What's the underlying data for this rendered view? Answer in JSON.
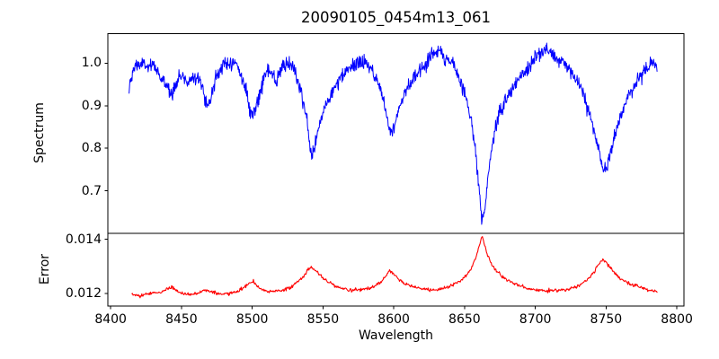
{
  "chart_data": {
    "type": "line",
    "title": "20090105_0454m13_061",
    "xlabel": "Wavelength",
    "grid": false,
    "legend": "none",
    "background": "#ffffff",
    "axis_color": "#000000",
    "xlim": [
      8398,
      8805
    ],
    "xticks": [
      8400,
      8450,
      8500,
      8550,
      8600,
      8650,
      8700,
      8750,
      8800
    ],
    "xtick_labels": [
      "8400",
      "8450",
      "8500",
      "8550",
      "8600",
      "8650",
      "8700",
      "8750",
      "8800"
    ],
    "panels": [
      {
        "name": "spectrum",
        "ylabel": "Spectrum",
        "ylim": [
          0.6,
          1.0695
        ],
        "yticks": [
          1.0,
          0.9,
          0.8,
          0.7
        ],
        "ytick_labels": [
          "1.0",
          "0.9",
          "0.8",
          "0.7"
        ],
        "series": [
          {
            "name": "spectrum",
            "color": "#0000ff",
            "linewidth": 1.0,
            "x_range": [
              8413,
              8786
            ],
            "n_points": 1250,
            "noise_sd": 0.0085,
            "seed": 1234,
            "anchors": [
              [
                8413,
                0.935
              ],
              [
                8415,
                0.97
              ],
              [
                8418,
                1.0
              ],
              [
                8421,
                0.995
              ],
              [
                8424,
                1.0
              ],
              [
                8427,
                0.985
              ],
              [
                8430,
                0.995
              ],
              [
                8433,
                0.985
              ],
              [
                8436,
                0.96
              ],
              [
                8440,
                0.945
              ],
              [
                8443,
                0.932
              ],
              [
                8446,
                0.95
              ],
              [
                8449,
                0.97
              ],
              [
                8452,
                0.965
              ],
              [
                8455,
                0.955
              ],
              [
                8458,
                0.97
              ],
              [
                8461,
                0.972
              ],
              [
                8464,
                0.95
              ],
              [
                8467,
                0.915
              ],
              [
                8469,
                0.9
              ],
              [
                8471,
                0.92
              ],
              [
                8474,
                0.965
              ],
              [
                8477,
                0.985
              ],
              [
                8480,
                0.995
              ],
              [
                8483,
                1.0
              ],
              [
                8486,
                1.005
              ],
              [
                8489,
                0.995
              ],
              [
                8492,
                0.975
              ],
              [
                8495,
                0.94
              ],
              [
                8498,
                0.9
              ],
              [
                8500,
                0.876
              ],
              [
                8502,
                0.89
              ],
              [
                8505,
                0.93
              ],
              [
                8508,
                0.965
              ],
              [
                8511,
                0.985
              ],
              [
                8514,
                0.97
              ],
              [
                8517,
                0.955
              ],
              [
                8520,
                0.98
              ],
              [
                8523,
                1.0
              ],
              [
                8526,
                0.995
              ],
              [
                8529,
                0.985
              ],
              [
                8532,
                0.96
              ],
              [
                8535,
                0.93
              ],
              [
                8538,
                0.88
              ],
              [
                8541,
                0.795
              ],
              [
                8542.5,
                0.782
              ],
              [
                8544,
                0.8
              ],
              [
                8547,
                0.85
              ],
              [
                8550,
                0.885
              ],
              [
                8553,
                0.91
              ],
              [
                8557,
                0.935
              ],
              [
                8561,
                0.955
              ],
              [
                8565,
                0.975
              ],
              [
                8570,
                0.99
              ],
              [
                8574,
                1.0
              ],
              [
                8578,
                1.005
              ],
              [
                8582,
                0.995
              ],
              [
                8586,
                0.975
              ],
              [
                8590,
                0.945
              ],
              [
                8594,
                0.895
              ],
              [
                8597,
                0.848
              ],
              [
                8598.5,
                0.838
              ],
              [
                8600,
                0.85
              ],
              [
                8603,
                0.89
              ],
              [
                8607,
                0.925
              ],
              [
                8611,
                0.95
              ],
              [
                8615,
                0.97
              ],
              [
                8619,
                0.985
              ],
              [
                8623,
                1.0
              ],
              [
                8627,
                1.02
              ],
              [
                8630,
                1.03
              ],
              [
                8633,
                1.025
              ],
              [
                8636,
                1.015
              ],
              [
                8639,
                1.005
              ],
              [
                8642,
                0.995
              ],
              [
                8645,
                0.975
              ],
              [
                8648,
                0.95
              ],
              [
                8651,
                0.92
              ],
              [
                8654,
                0.88
              ],
              [
                8657,
                0.82
              ],
              [
                8660,
                0.72
              ],
              [
                8662,
                0.635
              ],
              [
                8663,
                0.625
              ],
              [
                8664.5,
                0.66
              ],
              [
                8666,
                0.72
              ],
              [
                8668,
                0.775
              ],
              [
                8671,
                0.835
              ],
              [
                8674,
                0.875
              ],
              [
                8678,
                0.905
              ],
              [
                8682,
                0.93
              ],
              [
                8686,
                0.95
              ],
              [
                8690,
                0.97
              ],
              [
                8694,
                0.985
              ],
              [
                8698,
                1.005
              ],
              [
                8702,
                1.02
              ],
              [
                8706,
                1.03
              ],
              [
                8710,
                1.025
              ],
              [
                8714,
                1.015
              ],
              [
                8718,
                1.005
              ],
              [
                8722,
                0.995
              ],
              [
                8726,
                0.98
              ],
              [
                8730,
                0.955
              ],
              [
                8734,
                0.925
              ],
              [
                8738,
                0.885
              ],
              [
                8742,
                0.835
              ],
              [
                8745,
                0.79
              ],
              [
                8748,
                0.75
              ],
              [
                8750,
                0.748
              ],
              [
                8752,
                0.77
              ],
              [
                8755,
                0.815
              ],
              [
                8758,
                0.855
              ],
              [
                8762,
                0.89
              ],
              [
                8766,
                0.925
              ],
              [
                8770,
                0.95
              ],
              [
                8774,
                0.97
              ],
              [
                8778,
                0.985
              ],
              [
                8782,
                1.0
              ],
              [
                8786,
                0.995
              ]
            ]
          }
        ]
      },
      {
        "name": "error",
        "ylabel": "Error",
        "ylim": [
          0.01154,
          0.01422
        ],
        "yticks": [
          0.014,
          0.012
        ],
        "ytick_labels": [
          "0.014",
          "0.012"
        ],
        "series": [
          {
            "name": "error",
            "color": "#ff0000",
            "linewidth": 1.1,
            "x_range": [
              8415,
              8786
            ],
            "n_points": 900,
            "noise_sd": 3e-05,
            "seed": 777,
            "anchors": [
              [
                8415,
                0.01197
              ],
              [
                8419,
                0.01192
              ],
              [
                8423,
                0.01193
              ],
              [
                8427,
                0.012
              ],
              [
                8431,
                0.01205
              ],
              [
                8435,
                0.01202
              ],
              [
                8439,
                0.01215
              ],
              [
                8443,
                0.01225
              ],
              [
                8446,
                0.01212
              ],
              [
                8450,
                0.01202
              ],
              [
                8455,
                0.01197
              ],
              [
                8459,
                0.012
              ],
              [
                8463,
                0.01205
              ],
              [
                8467,
                0.01213
              ],
              [
                8470,
                0.0121
              ],
              [
                8474,
                0.01203
              ],
              [
                8478,
                0.01198
              ],
              [
                8482,
                0.01199
              ],
              [
                8486,
                0.01203
              ],
              [
                8490,
                0.0121
              ],
              [
                8494,
                0.01222
              ],
              [
                8498,
                0.01238
              ],
              [
                8501,
                0.01242
              ],
              [
                8504,
                0.01225
              ],
              [
                8508,
                0.01212
              ],
              [
                8512,
                0.01207
              ],
              [
                8517,
                0.0121
              ],
              [
                8522,
                0.01212
              ],
              [
                8527,
                0.01222
              ],
              [
                8532,
                0.01242
              ],
              [
                8536,
                0.01262
              ],
              [
                8539,
                0.01285
              ],
              [
                8542,
                0.01297
              ],
              [
                8545,
                0.01283
              ],
              [
                8549,
                0.01262
              ],
              [
                8553,
                0.01245
              ],
              [
                8558,
                0.01232
              ],
              [
                8563,
                0.0122
              ],
              [
                8569,
                0.01214
              ],
              [
                8575,
                0.01214
              ],
              [
                8581,
                0.01218
              ],
              [
                8586,
                0.01226
              ],
              [
                8590,
                0.0124
              ],
              [
                8594,
                0.01262
              ],
              [
                8597,
                0.01284
              ],
              [
                8600,
                0.01272
              ],
              [
                8604,
                0.01252
              ],
              [
                8608,
                0.01238
              ],
              [
                8613,
                0.01227
              ],
              [
                8618,
                0.01219
              ],
              [
                8624,
                0.01214
              ],
              [
                8630,
                0.01214
              ],
              [
                8636,
                0.01221
              ],
              [
                8641,
                0.0123
              ],
              [
                8646,
                0.01243
              ],
              [
                8650,
                0.01258
              ],
              [
                8654,
                0.01285
              ],
              [
                8658,
                0.0133
              ],
              [
                8661,
                0.0139
              ],
              [
                8662.5,
                0.0141
              ],
              [
                8664,
                0.01385
              ],
              [
                8666,
                0.01345
              ],
              [
                8669,
                0.0131
              ],
              [
                8672,
                0.01288
              ],
              [
                8676,
                0.01265
              ],
              [
                8680,
                0.0125
              ],
              [
                8685,
                0.01237
              ],
              [
                8690,
                0.01226
              ],
              [
                8696,
                0.01218
              ],
              [
                8702,
                0.01213
              ],
              [
                8708,
                0.01211
              ],
              [
                8714,
                0.01211
              ],
              [
                8720,
                0.01214
              ],
              [
                8726,
                0.0122
              ],
              [
                8731,
                0.01228
              ],
              [
                8736,
                0.01245
              ],
              [
                8741,
                0.01278
              ],
              [
                8745,
                0.0131
              ],
              [
                8748,
                0.01328
              ],
              [
                8751,
                0.0131
              ],
              [
                8754,
                0.01288
              ],
              [
                8758,
                0.01265
              ],
              [
                8762,
                0.01248
              ],
              [
                8766,
                0.01238
              ],
              [
                8771,
                0.01228
              ],
              [
                8776,
                0.0122
              ],
              [
                8781,
                0.01212
              ],
              [
                8786,
                0.01205
              ]
            ]
          }
        ]
      }
    ]
  }
}
